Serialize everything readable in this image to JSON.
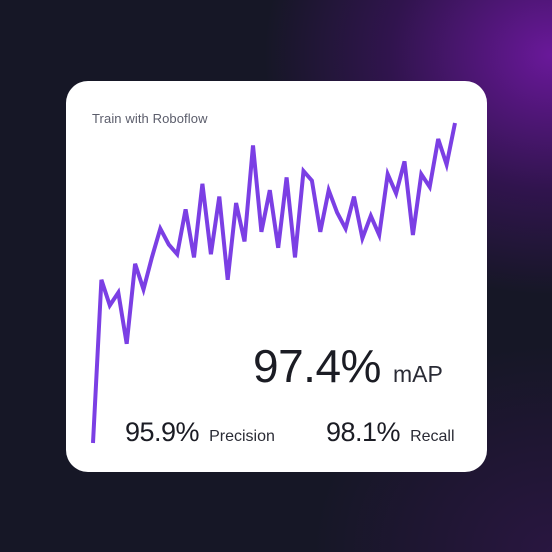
{
  "card": {
    "title": "Train with Roboflow"
  },
  "metrics": {
    "map": {
      "value": "97.4%",
      "label": "mAP"
    },
    "precision": {
      "value": "95.9%",
      "label": "Precision"
    },
    "recall": {
      "value": "98.1%",
      "label": "Recall"
    }
  },
  "colors": {
    "accent": "#7b3fe4",
    "background": "#161726",
    "card": "#ffffff"
  },
  "chart_data": {
    "type": "line",
    "title": "",
    "xlabel": "",
    "ylabel": "",
    "grid": false,
    "legend": "none",
    "ylim": [
      0,
      1
    ],
    "series": [
      {
        "values": [
          0.0,
          0.51,
          0.43,
          0.47,
          0.31,
          0.56,
          0.48,
          0.58,
          0.67,
          0.62,
          0.59,
          0.73,
          0.58,
          0.81,
          0.59,
          0.77,
          0.51,
          0.75,
          0.63,
          0.93,
          0.66,
          0.79,
          0.61,
          0.83,
          0.58,
          0.85,
          0.82,
          0.66,
          0.79,
          0.72,
          0.67,
          0.77,
          0.64,
          0.71,
          0.65,
          0.84,
          0.78,
          0.88,
          0.65,
          0.84,
          0.8,
          0.95,
          0.87,
          1.0
        ]
      }
    ]
  }
}
